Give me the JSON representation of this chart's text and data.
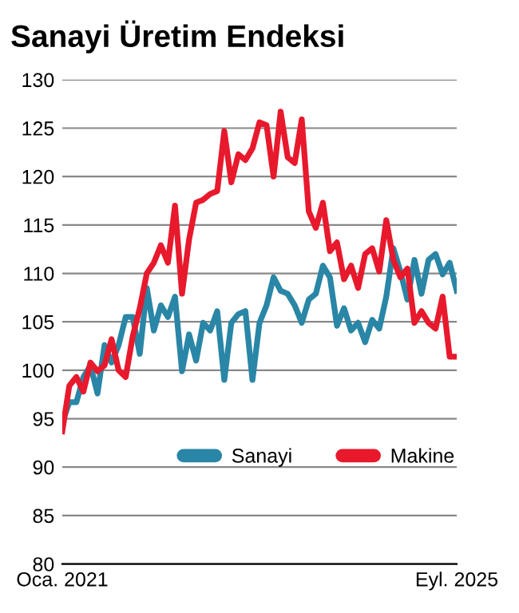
{
  "chart_data": {
    "type": "line",
    "title": "Sanayi Üretim Endeksi",
    "x": [
      "2021-01",
      "2021-02",
      "2021-03",
      "2021-04",
      "2021-05",
      "2021-06",
      "2021-07",
      "2021-08",
      "2021-09",
      "2021-10",
      "2021-11",
      "2021-12",
      "2022-01",
      "2022-02",
      "2022-03",
      "2022-04",
      "2022-05",
      "2022-06",
      "2022-07",
      "2022-08",
      "2022-09",
      "2022-10",
      "2022-11",
      "2022-12",
      "2023-01",
      "2023-02",
      "2023-03",
      "2023-04",
      "2023-05",
      "2023-06",
      "2023-07",
      "2023-08",
      "2023-09",
      "2023-10",
      "2023-11",
      "2023-12",
      "2024-01",
      "2024-02",
      "2024-03",
      "2024-04",
      "2024-05",
      "2024-06",
      "2024-07",
      "2024-08",
      "2024-09",
      "2024-10",
      "2024-11",
      "2024-12",
      "2025-01",
      "2025-02",
      "2025-03",
      "2025-04",
      "2025-05",
      "2025-06",
      "2025-07",
      "2025-08",
      "2025-09"
    ],
    "series": [
      {
        "name": "Sanayi",
        "color": "#2a86a6",
        "values": [
          94.6,
          96.7,
          96.7,
          99.3,
          100.5,
          97.6,
          102.6,
          100.8,
          102.6,
          105.5,
          105.5,
          101.7,
          108.5,
          104.1,
          106.7,
          105.5,
          107.6,
          99.9,
          103.7,
          101,
          104.9,
          104.1,
          106.1,
          99,
          104.9,
          105.8,
          106.1,
          99,
          104.9,
          106.7,
          109.6,
          108.2,
          107.9,
          106.7,
          104.9,
          107.3,
          107.9,
          110.8,
          109.6,
          104.6,
          106.4,
          104.1,
          104.9,
          102.9,
          105.2,
          104.3,
          107.6,
          112.6,
          110.2,
          107.3,
          111.4,
          107.9,
          111.4,
          112,
          109.9,
          111.1,
          108.2
        ]
      },
      {
        "name": "Makine",
        "color": "#e8192c",
        "values": [
          93.7,
          98.4,
          99.3,
          97.8,
          100.8,
          99.9,
          100.5,
          103.2,
          100,
          99.3,
          103.5,
          106.4,
          110,
          111.1,
          112.9,
          111.1,
          117,
          107.9,
          113.5,
          117.3,
          117.6,
          118.2,
          118.5,
          124.7,
          119.4,
          122.3,
          121.7,
          122.9,
          125.6,
          125.3,
          120,
          126.7,
          122,
          121.4,
          125.9,
          116.4,
          114.7,
          117.3,
          112.3,
          113.2,
          109.4,
          110.8,
          108.5,
          112,
          112.6,
          110.2,
          115.5,
          111.4,
          109.6,
          110.5,
          104.9,
          106.1,
          104.9,
          104.3,
          107.6,
          101.4,
          101.4
        ]
      }
    ],
    "xlim": [
      "2021-01",
      "2025-09"
    ],
    "xticks": [
      {
        "value": "2021-01",
        "label": "Oca. 2021"
      },
      {
        "value": "2025-09",
        "label": "Eyl. 2025"
      }
    ],
    "ylim": [
      80,
      130
    ],
    "yticks": [
      80,
      85,
      90,
      95,
      100,
      105,
      110,
      115,
      120,
      125,
      130
    ],
    "grid": "y",
    "legend": "center right",
    "marker": "none",
    "line_style": "solid"
  }
}
